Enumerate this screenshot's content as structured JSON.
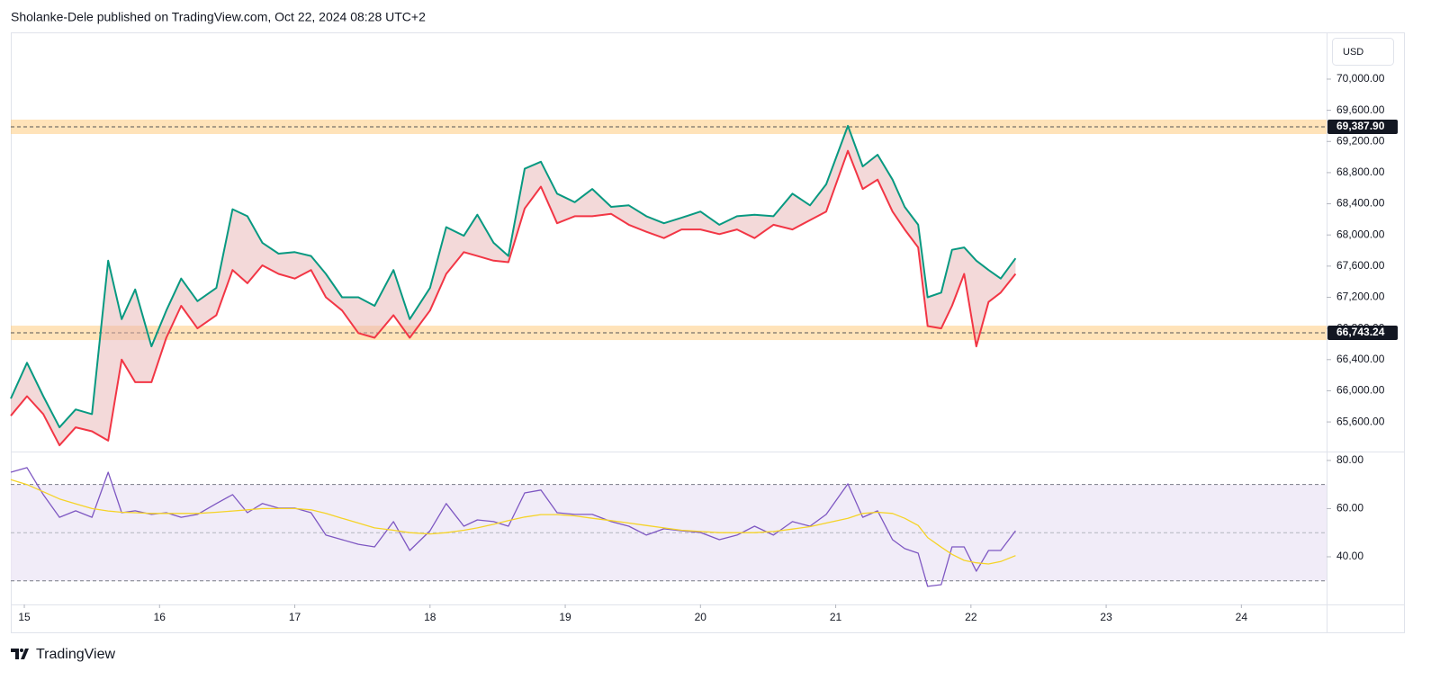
{
  "header": "Sholanke-Dele published on TradingView.com, Oct 22, 2024 08:28 UTC+2",
  "footer": "TradingView",
  "chart_data": [
    {
      "type": "range",
      "currency": "USD",
      "x": [
        14.9,
        15.02,
        15.14,
        15.26,
        15.38,
        15.5,
        15.62,
        15.72,
        15.82,
        15.94,
        16.05,
        16.16,
        16.28,
        16.42,
        16.54,
        16.65,
        16.76,
        16.88,
        17.0,
        17.12,
        17.23,
        17.35,
        17.47,
        17.59,
        17.73,
        17.85,
        18.0,
        18.12,
        18.25,
        18.35,
        18.47,
        18.58,
        18.7,
        18.82,
        18.94,
        19.07,
        19.2,
        19.34,
        19.47,
        19.6,
        19.73,
        19.86,
        20.0,
        20.14,
        20.27,
        20.4,
        20.54,
        20.68,
        20.81,
        20.93,
        21.09,
        21.2,
        21.31,
        21.42,
        21.51,
        21.61,
        21.68,
        21.78,
        21.86,
        21.95,
        22.04,
        22.13,
        22.22,
        22.33
      ],
      "xlim": [
        14.9,
        24.63
      ],
      "xticks": [
        15,
        16,
        17,
        18,
        19,
        20,
        21,
        22,
        23,
        24
      ],
      "series": [
        {
          "color": "#089981",
          "values": [
            65900,
            66360,
            65930,
            65530,
            65760,
            65700,
            67670,
            66920,
            67300,
            66570,
            67030,
            67440,
            67150,
            67320,
            68330,
            68240,
            67900,
            67760,
            67780,
            67730,
            67500,
            67200,
            67200,
            67090,
            67550,
            66920,
            67320,
            68100,
            67990,
            68260,
            67900,
            67730,
            68850,
            68940,
            68530,
            68420,
            68590,
            68360,
            68380,
            68240,
            68150,
            68220,
            68300,
            68130,
            68240,
            68260,
            68240,
            68530,
            68380,
            68650,
            69400,
            68880,
            69030,
            68710,
            68360,
            68130,
            67200,
            67260,
            67810,
            67840,
            67670,
            67550,
            67440,
            67700
          ]
        },
        {
          "color": "#f23645",
          "values": [
            65680,
            65930,
            65700,
            65300,
            65530,
            65480,
            65360,
            66400,
            66110,
            66110,
            66680,
            67090,
            66800,
            66970,
            67550,
            67380,
            67610,
            67500,
            67440,
            67550,
            67200,
            67030,
            66740,
            66680,
            66970,
            66680,
            67030,
            67500,
            67780,
            67730,
            67670,
            67650,
            68340,
            68620,
            68150,
            68240,
            68240,
            68270,
            68130,
            68040,
            67960,
            68070,
            68070,
            68010,
            68070,
            67960,
            68130,
            68070,
            68190,
            68300,
            69080,
            68590,
            68710,
            68300,
            68070,
            67840,
            66830,
            66800,
            67090,
            67500,
            66570,
            67140,
            67260,
            67500
          ]
        }
      ],
      "fill_color": "#e8b4b4",
      "ylim": [
        65220,
        70600
      ],
      "yticks": [
        {
          "value": 65600,
          "label": "65,600.00"
        },
        {
          "value": 66000,
          "label": "66,000.00"
        },
        {
          "value": 66400,
          "label": "66,400.00"
        },
        {
          "value": 66800,
          "label": "66,800.00"
        },
        {
          "value": 67200,
          "label": "67,200.00"
        },
        {
          "value": 67600,
          "label": "67,600.00"
        },
        {
          "value": 68000,
          "label": "68,000.00"
        },
        {
          "value": 68400,
          "label": "68,400.00"
        },
        {
          "value": 68800,
          "label": "68,800.00"
        },
        {
          "value": 69200,
          "label": "69,200.00"
        },
        {
          "value": 69600,
          "label": "69,600.00"
        },
        {
          "value": 70000,
          "label": "70,000.00"
        }
      ],
      "grid": false,
      "price_labels": [
        {
          "value": 69387.9,
          "label": "69,387.90"
        },
        {
          "value": 66743.24,
          "label": "66,743.24"
        }
      ],
      "band_color": "#ffcc80"
    },
    {
      "type": "line",
      "series": [
        {
          "color": "#7e57c2",
          "values": [
            75.1,
            77,
            65.8,
            56.4,
            59.1,
            56.4,
            75.1,
            58.3,
            59.1,
            57.6,
            58.3,
            56.4,
            57.6,
            62.1,
            65.8,
            58.3,
            62.1,
            60.2,
            60.2,
            58.3,
            49,
            47.1,
            45.2,
            44.1,
            54.6,
            42.6,
            50.8,
            62.1,
            52.7,
            55.3,
            54.6,
            52.7,
            66.5,
            67.7,
            58.3,
            57.6,
            57.6,
            54.6,
            52.7,
            49,
            51.6,
            50.8,
            50.1,
            47.1,
            49,
            52.7,
            49,
            54.6,
            52.7,
            57.6,
            70.3,
            56.4,
            59.1,
            47.1,
            43.4,
            41.5,
            27.7,
            28.4,
            44.1,
            44.1,
            34,
            42.6,
            42.6,
            50.8
          ]
        },
        {
          "color": "#f5d327",
          "values": [
            72,
            70,
            67,
            64,
            62,
            60,
            59,
            58.5,
            58.3,
            58,
            58,
            58,
            58,
            58.5,
            59,
            59.5,
            60,
            60,
            60,
            59.5,
            58,
            56,
            54,
            52,
            51,
            50,
            49.5,
            50,
            51,
            52,
            53.5,
            55,
            56.5,
            57.5,
            57.5,
            57,
            56,
            55,
            54,
            53,
            52,
            51,
            50.5,
            50,
            50,
            50,
            50.5,
            51.5,
            52.5,
            54,
            56,
            58,
            58.5,
            58,
            56,
            53,
            48,
            44,
            41,
            38.5,
            37.5,
            37,
            38,
            40.5
          ]
        }
      ],
      "ylim": [
        20.2,
        83.7
      ],
      "yticks": [
        {
          "value": 40,
          "label": "40.00"
        },
        {
          "value": 60,
          "label": "60.00"
        },
        {
          "value": 80,
          "label": "80.00"
        }
      ],
      "levels": [
        70,
        50,
        30
      ],
      "band_color": "#ede7f6"
    }
  ]
}
